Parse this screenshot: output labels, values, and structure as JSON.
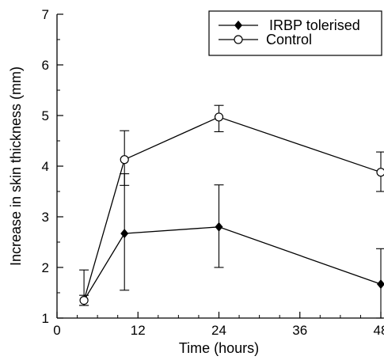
{
  "chart_data": {
    "type": "line",
    "xlabel": "Time (hours)",
    "ylabel": "Increase in skin thickness (mm)",
    "xlim": [
      0,
      48
    ],
    "ylim": [
      1,
      7
    ],
    "x_ticks": [
      0,
      12,
      24,
      36,
      48
    ],
    "y_ticks": [
      1,
      2,
      3,
      4,
      5,
      6,
      7
    ],
    "x_tick_labels": [
      "0",
      "12",
      "24",
      "36",
      "48"
    ],
    "y_tick_labels": [
      "1",
      "2",
      "3",
      "4",
      "5",
      "6",
      "7"
    ],
    "legend_position": "top-right",
    "grid": false,
    "series": [
      {
        "name": "IRBP tolerised",
        "marker": "filled-diamond",
        "color": "#000000",
        "x": [
          4,
          10,
          24,
          48
        ],
        "y": [
          1.35,
          2.67,
          2.8,
          1.67
        ],
        "err_low": [
          1.25,
          1.55,
          2.0,
          1.0
        ],
        "err_high": [
          1.45,
          3.85,
          3.63,
          2.37
        ]
      },
      {
        "name": "Control",
        "marker": "open-circle",
        "color": "#000000",
        "x": [
          4,
          10,
          24,
          48
        ],
        "y": [
          1.35,
          4.13,
          4.97,
          3.88
        ],
        "err_low": [
          1.25,
          3.62,
          4.68,
          3.5
        ],
        "err_high": [
          1.95,
          4.7,
          5.2,
          4.28
        ]
      }
    ]
  }
}
